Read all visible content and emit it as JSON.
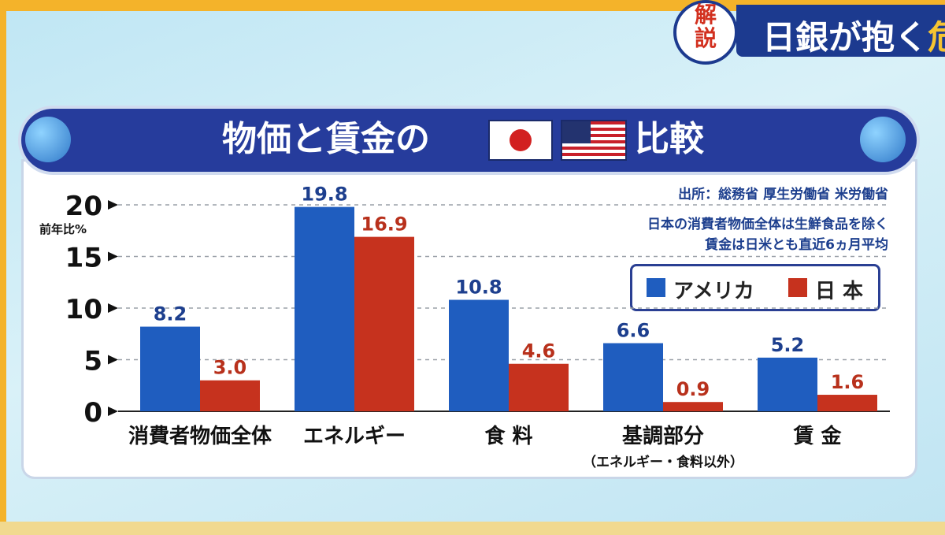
{
  "header": {
    "badge_top": "解",
    "badge_bottom": "説",
    "title": "日銀が抱く",
    "title_cut": "危"
  },
  "panel": {
    "title": "物価と賃金の",
    "title_suffix": "比較",
    "source": "出所：総務省 厚生労働省 米労働省",
    "note1": "日本の消費者物価全体は生鮮食品を除く",
    "note2": "賃金は日米とも直近6ヵ月平均"
  },
  "colors": {
    "usa": "#1f5dbf",
    "japan": "#c6321e",
    "usa_label": "#1d3f8e",
    "japan_label": "#b8311c",
    "title_bar": "#263c9c"
  },
  "chart_data": {
    "type": "bar",
    "ylabel": "前年比%",
    "ylim": [
      0,
      20
    ],
    "yticks": [
      0,
      5,
      10,
      15,
      20
    ],
    "grid": true,
    "legend_position": "top-right",
    "categories": [
      "消費者物価全体",
      "エネルギー",
      "食 料",
      "基調部分",
      "賃 金"
    ],
    "category_sublabels": [
      "",
      "",
      "",
      "（エネルギー・食料以外）",
      ""
    ],
    "series": [
      {
        "name": "アメリカ",
        "values": [
          8.2,
          19.8,
          10.8,
          6.6,
          5.2
        ],
        "labels": [
          "8.2",
          "19.8",
          "10.8",
          "6.6",
          "5.2"
        ]
      },
      {
        "name": "日 本",
        "values": [
          3.0,
          16.9,
          4.6,
          0.9,
          1.6
        ],
        "labels": [
          "3.0",
          "16.9",
          "4.6",
          "0.9",
          "1.6"
        ]
      }
    ]
  }
}
